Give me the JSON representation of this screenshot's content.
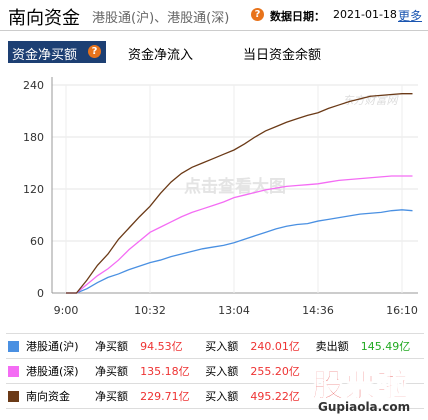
{
  "header": {
    "title": "南向资金",
    "links": "港股通(沪)、港股通(深)",
    "help_icon": "?",
    "date_label": "数据日期：",
    "date": "2021-01-18",
    "more": "更多"
  },
  "tabs": [
    "资金净买额",
    "资金净流入",
    "当日资金余额"
  ],
  "chart_data": {
    "type": "line",
    "watermark": "点击查看大图",
    "logo": "东方财富网",
    "categories": [
      "9:00",
      null,
      null,
      null,
      null,
      null,
      null,
      null,
      "10:32",
      null,
      null,
      null,
      null,
      null,
      null,
      null,
      "13:04",
      null,
      null,
      null,
      null,
      null,
      null,
      null,
      "14:36",
      null,
      null,
      null,
      null,
      null,
      null,
      null,
      "16:10",
      null
    ],
    "series": [
      {
        "name": "港股通(沪)",
        "color": "#4a90e2",
        "values": [
          0,
          0,
          5,
          12,
          18,
          22,
          27,
          31,
          35,
          38,
          42,
          45,
          48,
          51,
          53,
          55,
          58,
          62,
          66,
          70,
          74,
          77,
          79,
          80,
          83,
          85,
          87,
          89,
          91,
          92,
          93,
          95,
          96,
          95
        ]
      },
      {
        "name": "港股通(深)",
        "color": "#f46cf4",
        "values": [
          0,
          0,
          10,
          20,
          28,
          38,
          50,
          60,
          70,
          76,
          82,
          88,
          93,
          97,
          101,
          105,
          110,
          113,
          116,
          119,
          121,
          123,
          124,
          125,
          126,
          128,
          130,
          131,
          132,
          133,
          134,
          135,
          135,
          135
        ]
      },
      {
        "name": "南向资金",
        "color": "#6b3a17",
        "values": [
          0,
          0,
          15,
          32,
          45,
          62,
          75,
          88,
          100,
          115,
          128,
          138,
          145,
          150,
          155,
          160,
          165,
          172,
          180,
          187,
          192,
          197,
          201,
          205,
          208,
          213,
          217,
          221,
          224,
          227,
          228,
          229,
          230,
          230
        ]
      }
    ],
    "ylim": [
      0,
      240
    ],
    "yticks": [
      0,
      60,
      120,
      180,
      240
    ],
    "grid": true
  },
  "table": {
    "rows": [
      [
        "净买额",
        "94.53亿",
        "买入额",
        "240.01亿",
        "卖出额",
        "145.49亿"
      ],
      [
        "净买额",
        "135.18亿",
        "买入额",
        "255.20亿"
      ],
      [
        "净买额",
        "229.71亿",
        "买入额",
        "495.22亿"
      ]
    ]
  },
  "brand": {
    "name": "股票啦",
    "site": "Gupiaola.com"
  }
}
